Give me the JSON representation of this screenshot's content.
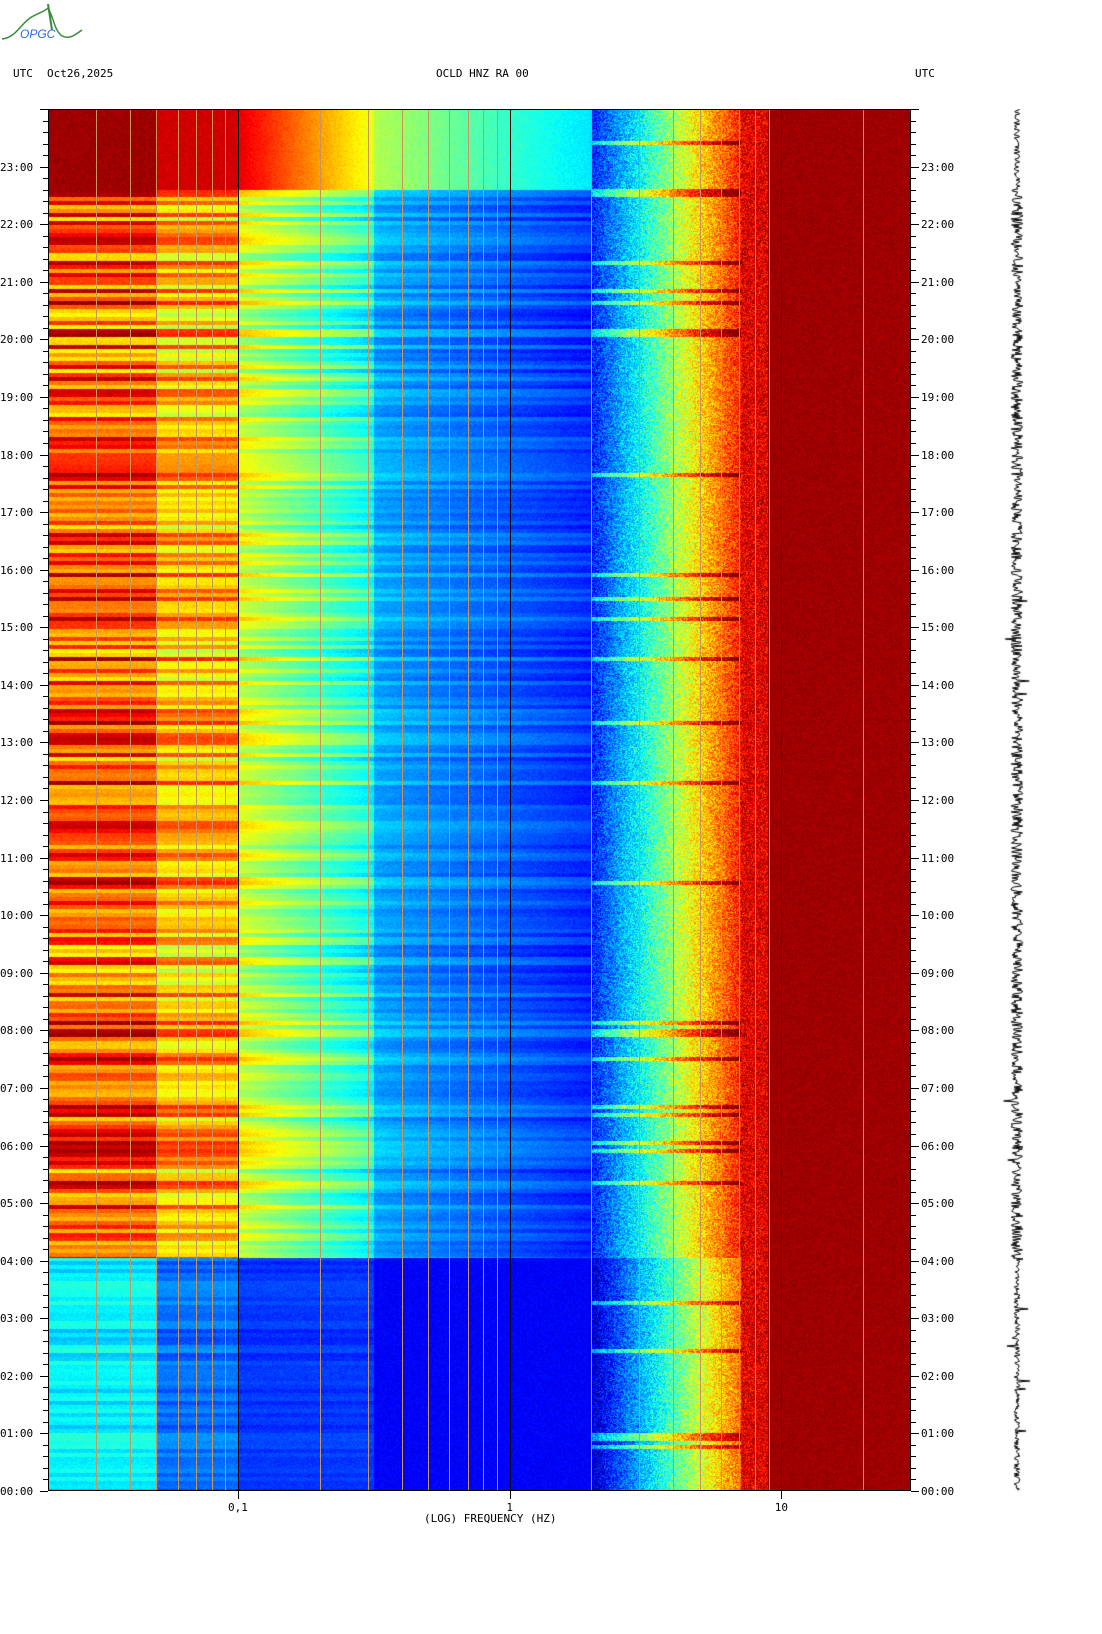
{
  "header": {
    "left_tz": "UTC",
    "date": "Oct26,2025",
    "title": "OCLD HNZ RA 00",
    "right_tz": "UTC"
  },
  "logo": {
    "text": "OPGC"
  },
  "colors": {
    "grid_minor": "#c8965a",
    "grid_major": "#000000",
    "trace": "#000000"
  },
  "chart_data": {
    "type": "heatmap",
    "title": "OCLD HNZ RA 00",
    "xlabel": "(LOG) FREQUENCY (HZ)",
    "xscale": "log",
    "xlim": [
      0.02,
      30
    ],
    "x_ticks": [
      {
        "value": 0.1,
        "label": "0,1"
      },
      {
        "value": 1,
        "label": "1"
      },
      {
        "value": 10,
        "label": "10"
      }
    ],
    "ylabel": "UTC",
    "ylim_hours": [
      0,
      24
    ],
    "y_ticks": [
      "00:00",
      "01:00",
      "02:00",
      "03:00",
      "04:00",
      "05:00",
      "06:00",
      "07:00",
      "08:00",
      "09:00",
      "10:00",
      "11:00",
      "12:00",
      "13:00",
      "14:00",
      "15:00",
      "16:00",
      "17:00",
      "18:00",
      "19:00",
      "20:00",
      "21:00",
      "22:00",
      "23:00"
    ],
    "colormap": "jet",
    "notes": "High power (red) below 0.05 Hz from 04:00-24:00; low power (blue) 0.3-2 Hz; power rises above 3 Hz, saturated above ~7 Hz"
  }
}
